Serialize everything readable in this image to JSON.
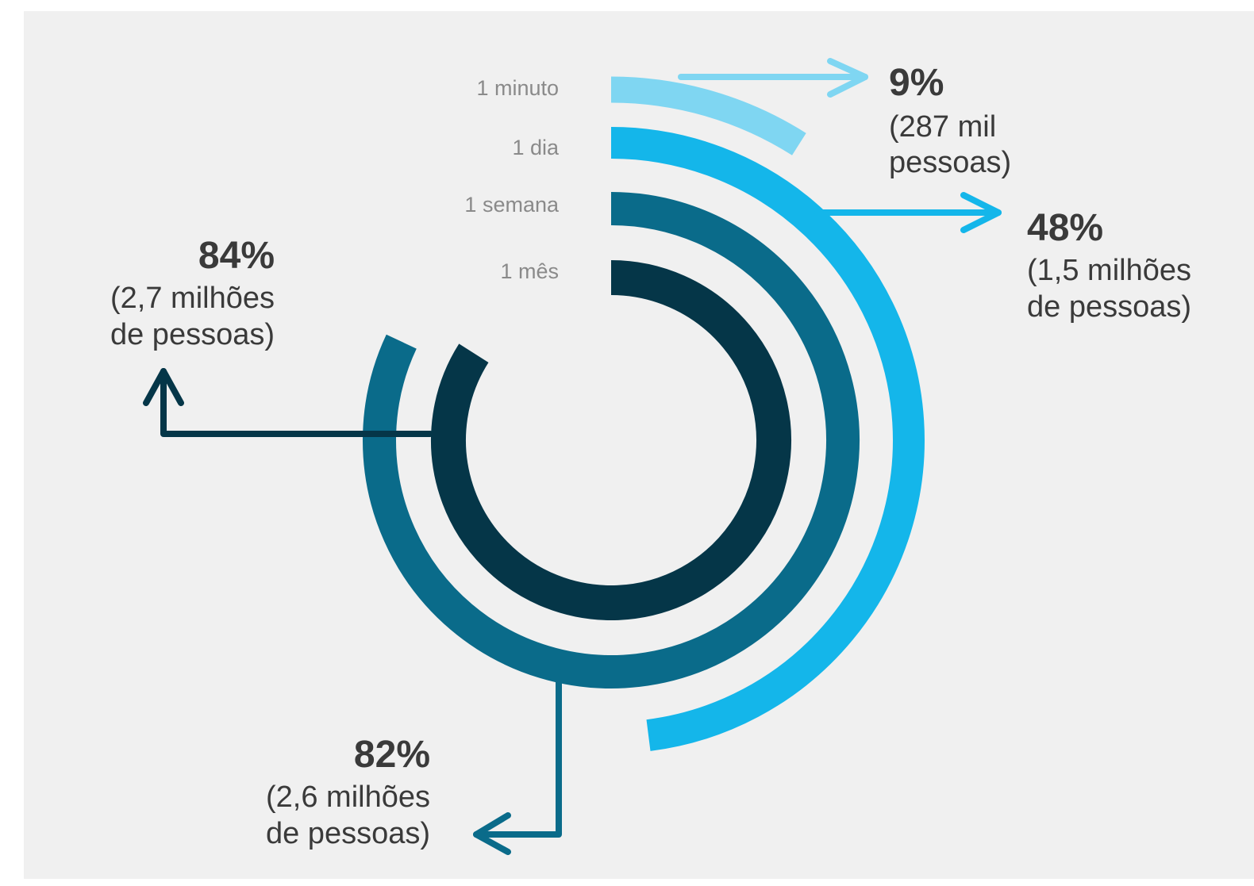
{
  "colors": {
    "background": "#f0f0f0",
    "1_minuto": "#7fd6f2",
    "1_dia": "#14b6ea",
    "1_semana": "#0a6b8a",
    "1_mes": "#053648"
  },
  "chart_data": {
    "type": "radial-bar",
    "rings": [
      {
        "label": "1 minuto",
        "value": 9,
        "value_label": "9%",
        "people_lines": [
          "(287 mil",
          "pessoas)"
        ]
      },
      {
        "label": "1 dia",
        "value": 48,
        "value_label": "48%",
        "people_lines": [
          "(1,5 milhões",
          "de pessoas)"
        ]
      },
      {
        "label": "1 semana",
        "value": 82,
        "value_label": "82%",
        "people_lines": [
          "(2,6 milhões",
          "de pessoas)"
        ]
      },
      {
        "label": "1 mês",
        "value": 84,
        "value_label": "84%",
        "people_lines": [
          "(2,7 milhões",
          "de pessoas)"
        ]
      }
    ]
  }
}
